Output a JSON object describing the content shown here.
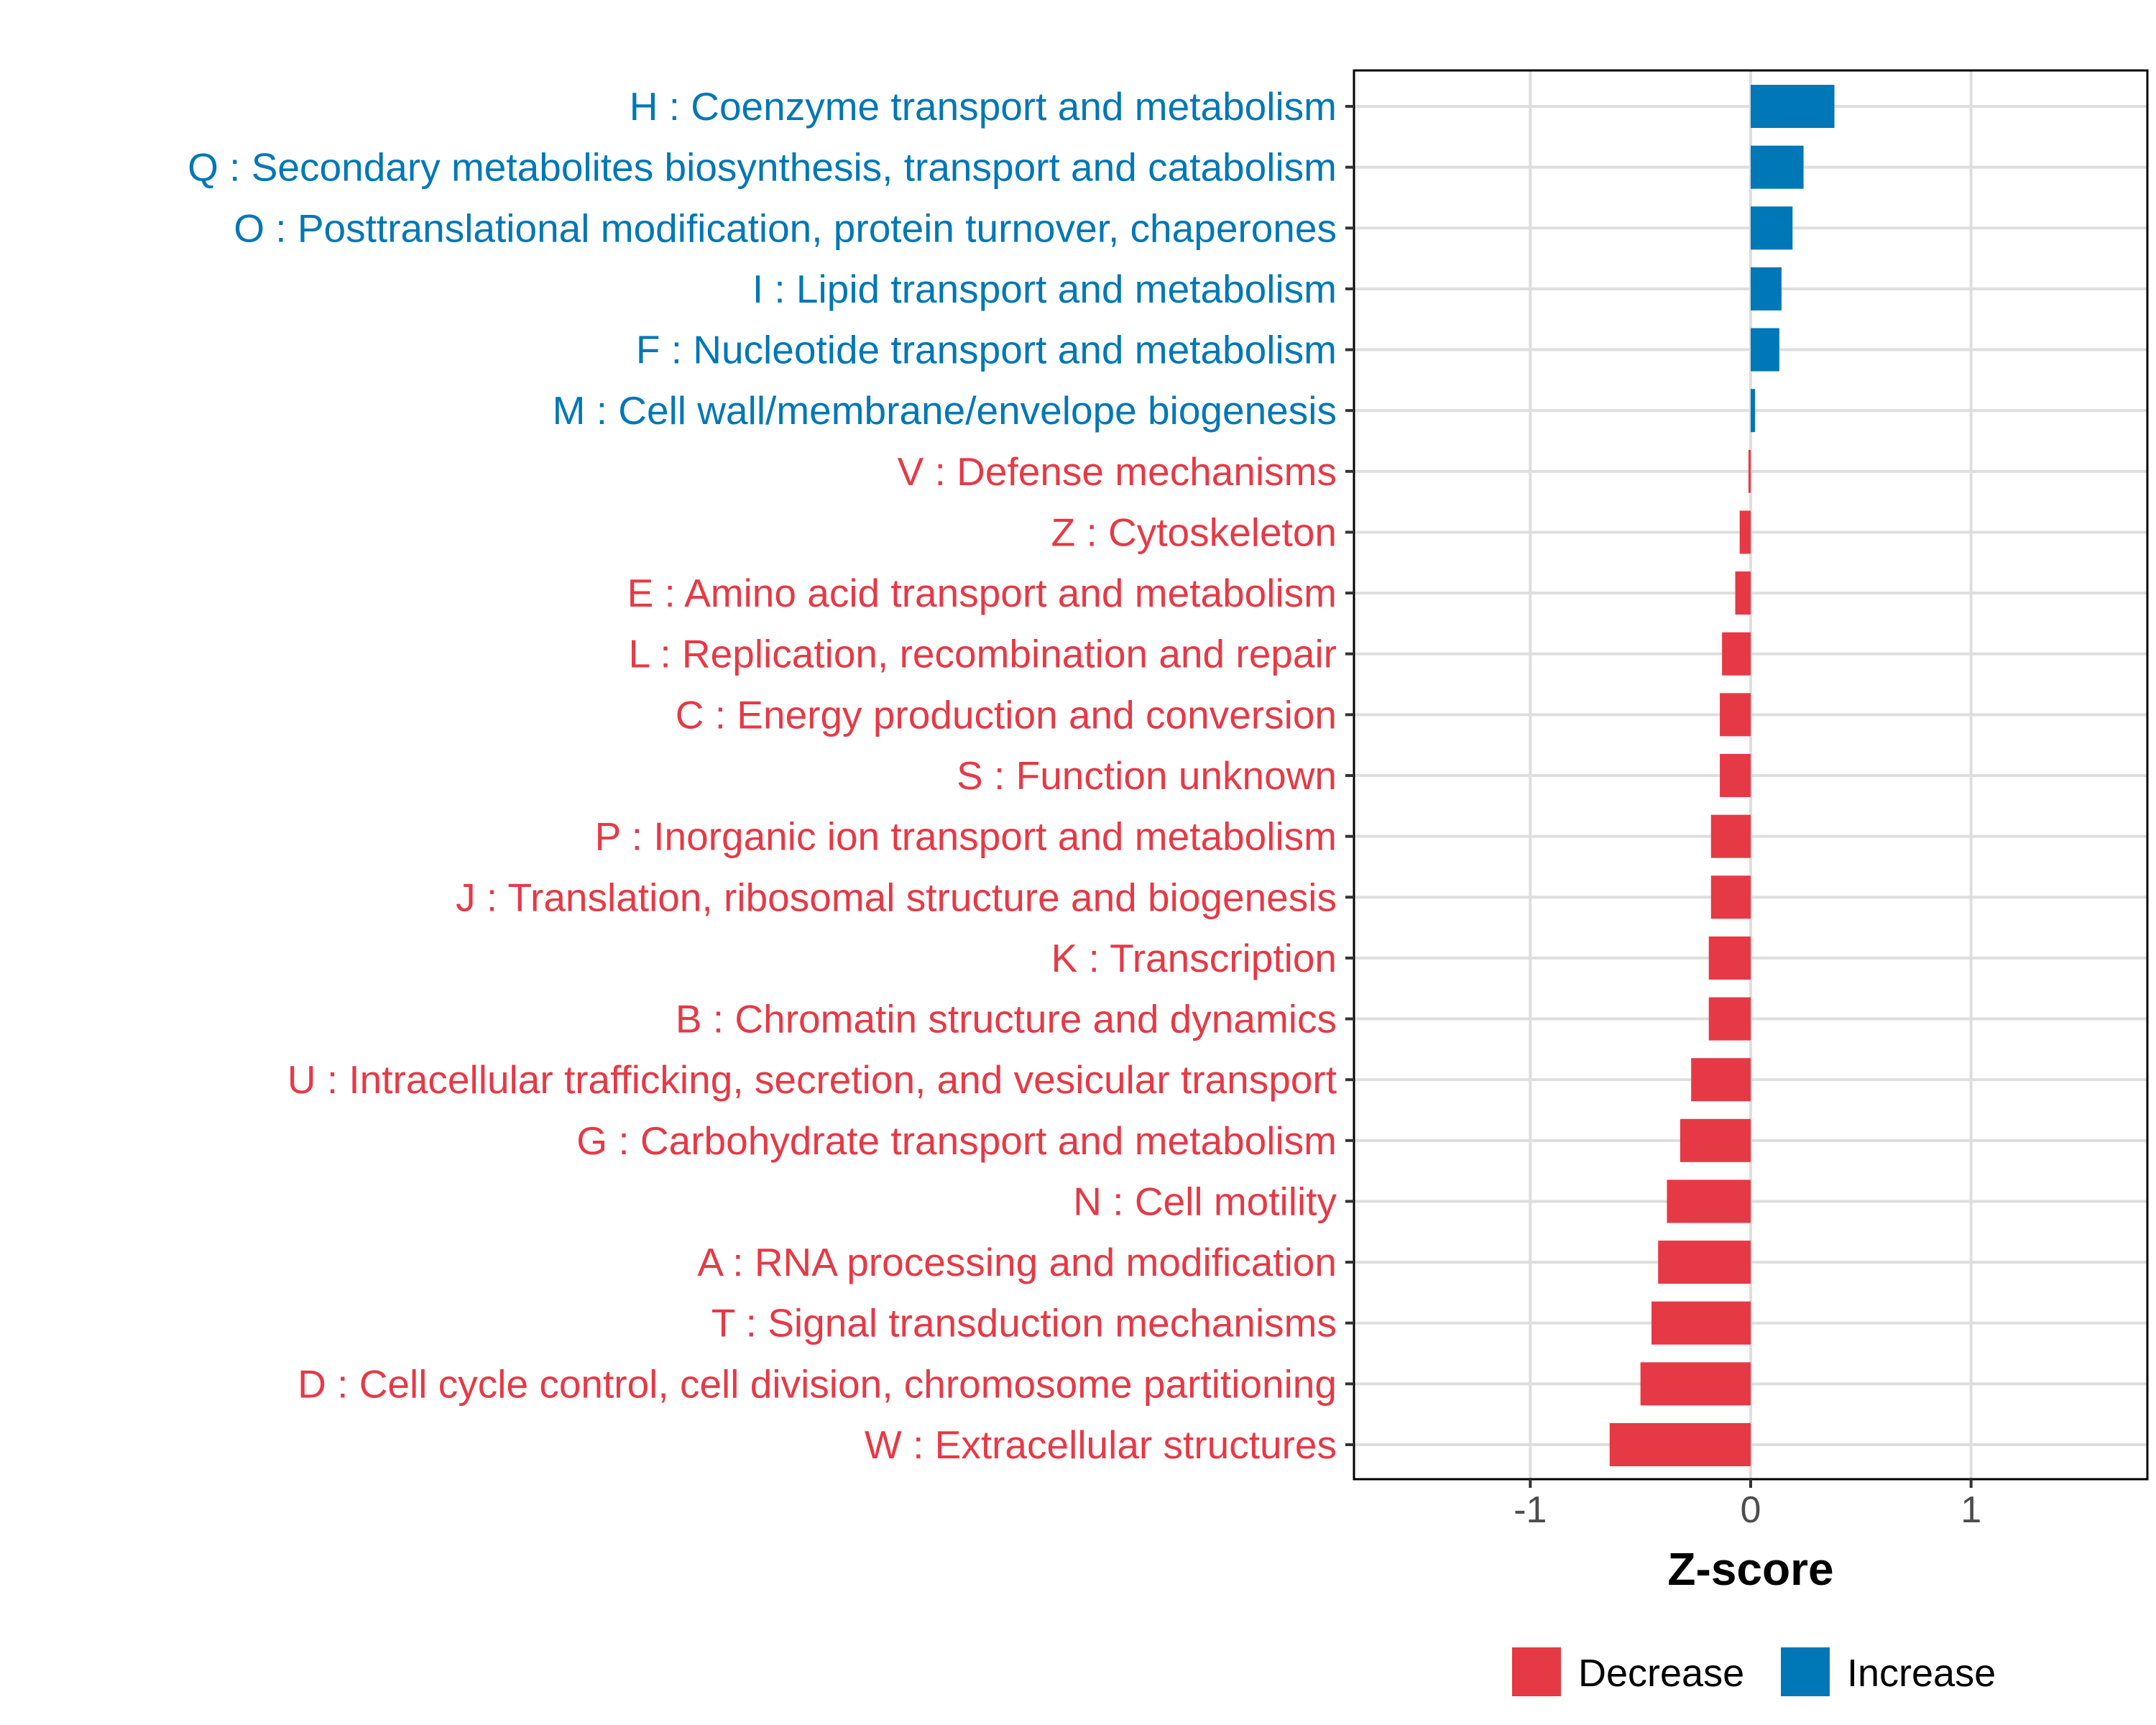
{
  "chart_data": {
    "type": "bar",
    "orientation": "horizontal",
    "categories": [
      "H : Coenzyme transport and metabolism",
      "Q : Secondary metabolites biosynthesis, transport and catabolism",
      "O : Posttranslational modification, protein turnover, chaperones",
      "I : Lipid transport and metabolism",
      "F : Nucleotide transport and metabolism",
      "M : Cell wall/membrane/envelope biogenesis",
      "V : Defense mechanisms",
      "Z : Cytoskeleton",
      "E : Amino acid transport and metabolism",
      "L : Replication, recombination and repair",
      "C : Energy production and conversion",
      "S : Function unknown",
      "P : Inorganic ion transport and metabolism",
      "J : Translation, ribosomal structure and biogenesis",
      "K : Transcription",
      "B : Chromatin structure and dynamics",
      "U : Intracellular trafficking, secretion, and vesicular transport",
      "G : Carbohydrate transport and metabolism",
      "N : Cell motility",
      "A : RNA processing and modification",
      "T : Signal transduction mechanisms",
      "D : Cell cycle control, cell division, chromosome partitioning",
      "W : Extracellular structures"
    ],
    "values": [
      0.38,
      0.24,
      0.19,
      0.14,
      0.13,
      0.02,
      -0.01,
      -0.05,
      -0.07,
      -0.13,
      -0.14,
      -0.14,
      -0.18,
      -0.18,
      -0.19,
      -0.19,
      -0.27,
      -0.32,
      -0.38,
      -0.42,
      -0.45,
      -0.5,
      -0.64
    ],
    "groups": [
      "Increase",
      "Increase",
      "Increase",
      "Increase",
      "Increase",
      "Increase",
      "Decrease",
      "Decrease",
      "Decrease",
      "Decrease",
      "Decrease",
      "Decrease",
      "Decrease",
      "Decrease",
      "Decrease",
      "Decrease",
      "Decrease",
      "Decrease",
      "Decrease",
      "Decrease",
      "Decrease",
      "Decrease",
      "Decrease"
    ],
    "xlabel": "Z-score",
    "ylabel": "",
    "xlim": [
      -1.8,
      1.8
    ],
    "xticks": [
      "-1",
      "0",
      "1"
    ],
    "xtick_values": [
      -1,
      0,
      1
    ],
    "grid": true,
    "legend": {
      "position": "bottom",
      "entries": [
        "Decrease",
        "Increase"
      ]
    },
    "colors": {
      "Decrease": "#E63946",
      "Increase": "#0077B6"
    }
  }
}
